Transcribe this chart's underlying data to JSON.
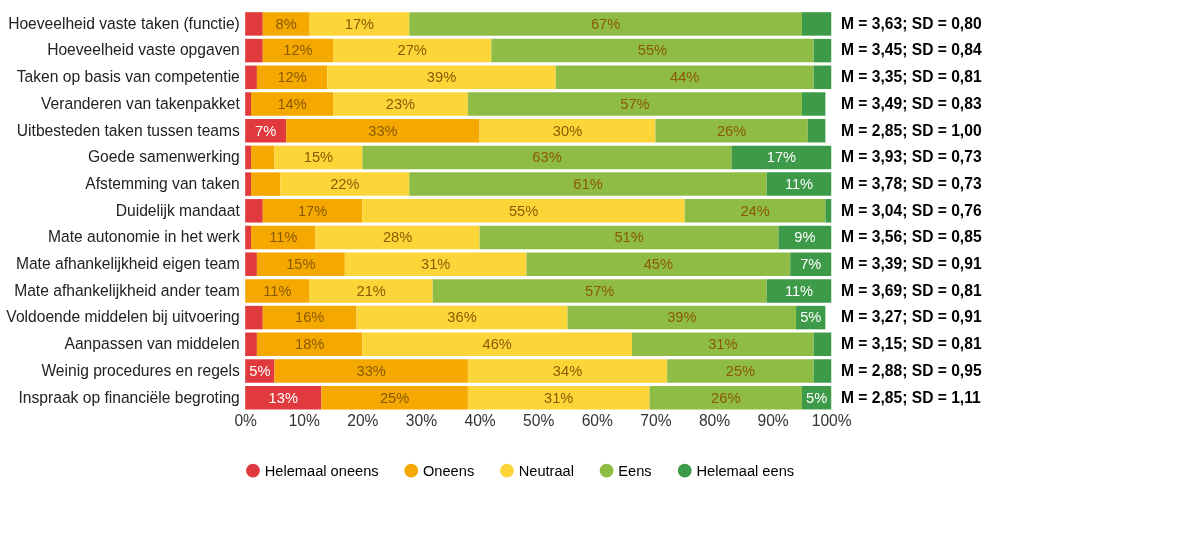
{
  "chart_data": {
    "type": "bar",
    "orientation": "horizontal",
    "stacked": true,
    "categories": [
      "Hoeveelheid vaste taken (functie)",
      "Hoeveelheid vaste opgaven",
      "Taken op basis van competentie",
      "Veranderen van takenpakket",
      "Uitbesteden taken tussen teams",
      "Goede samenwerking",
      "Afstemming van taken",
      "Duidelijk mandaat",
      "Mate autonomie in het werk",
      "Mate afhankelijkheid eigen team",
      "Mate afhankelijkheid ander team",
      "Voldoende middelen bij uitvoering",
      "Aanpassen van middelen",
      "Weinig procedures en regels",
      "Inspraak op financiële begroting"
    ],
    "series": [
      {
        "name": "Helemaal oneens",
        "color": "#e03a3e",
        "values": [
          3,
          3,
          2,
          1,
          7,
          1,
          1,
          3,
          1,
          2,
          0,
          3,
          2,
          5,
          13
        ],
        "value_labels": [
          null,
          null,
          null,
          null,
          "7%",
          null,
          null,
          null,
          null,
          null,
          null,
          null,
          null,
          "5%",
          "13%"
        ]
      },
      {
        "name": "Oneens",
        "color": "#f5a800",
        "values": [
          8,
          12,
          12,
          14,
          33,
          4,
          5,
          17,
          11,
          15,
          11,
          16,
          18,
          33,
          25
        ],
        "value_labels": [
          "8%",
          "12%",
          "12%",
          "14%",
          "33%",
          null,
          null,
          "17%",
          "11%",
          "15%",
          "11%",
          "16%",
          "18%",
          "33%",
          "25%"
        ]
      },
      {
        "name": "Neutraal",
        "color": "#fcd639",
        "values": [
          17,
          27,
          39,
          23,
          30,
          15,
          22,
          55,
          28,
          31,
          21,
          36,
          46,
          34,
          31
        ],
        "value_labels": [
          "17%",
          "27%",
          "39%",
          "23%",
          "30%",
          "15%",
          "22%",
          "55%",
          "28%",
          "31%",
          "21%",
          "36%",
          "46%",
          "34%",
          "31%"
        ]
      },
      {
        "name": "Eens",
        "color": "#8fbc45",
        "values": [
          67,
          55,
          44,
          57,
          26,
          63,
          61,
          24,
          51,
          45,
          57,
          39,
          31,
          25,
          26
        ],
        "value_labels": [
          "67%",
          "55%",
          "44%",
          "57%",
          "26%",
          "63%",
          "61%",
          "24%",
          "51%",
          "45%",
          "57%",
          "39%",
          "31%",
          "25%",
          "26%"
        ]
      },
      {
        "name": "Helemaal eens",
        "color": "#3c9a48",
        "values": [
          5,
          3,
          3,
          4,
          3,
          17,
          11,
          1,
          9,
          7,
          11,
          5,
          3,
          3,
          5
        ],
        "value_labels": [
          null,
          null,
          null,
          null,
          null,
          "17%",
          "11%",
          null,
          "9%",
          "7%",
          "11%",
          "5%",
          null,
          null,
          "5%"
        ]
      }
    ],
    "xlim": [
      0,
      100
    ],
    "xticks": [
      {
        "value": 0,
        "label": "0%"
      },
      {
        "value": 10,
        "label": "10%"
      },
      {
        "value": 20,
        "label": "20%"
      },
      {
        "value": 30,
        "label": "30%"
      },
      {
        "value": 40,
        "label": "40%"
      },
      {
        "value": 50,
        "label": "50%"
      },
      {
        "value": 60,
        "label": "60%"
      },
      {
        "value": 70,
        "label": "70%"
      },
      {
        "value": 80,
        "label": "80%"
      },
      {
        "value": 90,
        "label": "90%"
      },
      {
        "value": 100,
        "label": "100%"
      }
    ],
    "legend": "bottom left",
    "annotations": [
      "M = 3,63; SD = 0,80",
      "M = 3,45; SD = 0,84",
      "M = 3,35; SD = 0,81",
      "M = 3,49; SD = 0,83",
      "M = 2,85; SD = 1,00",
      "M = 3,93; SD = 0,73",
      "M = 3,78; SD = 0,73",
      "M = 3,04; SD = 0,76",
      "M = 3,56; SD = 0,85",
      "M = 3,39; SD = 0,91",
      "M = 3,69; SD = 0,81",
      "M = 3,27; SD = 0,91",
      "M = 3,15; SD = 0,81",
      "M = 2,88; SD = 0,95",
      "M = 2,85; SD = 1,11"
    ]
  }
}
